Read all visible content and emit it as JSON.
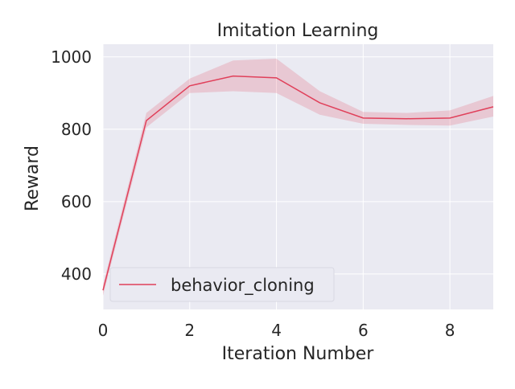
{
  "chart_data": {
    "type": "line",
    "title": "Imitation Learning",
    "xlabel": "Iteration Number",
    "ylabel": "Reward",
    "xlim": [
      0,
      9
    ],
    "ylim": [
      302,
      1035
    ],
    "xticks": [
      0,
      2,
      4,
      6,
      8
    ],
    "yticks": [
      400,
      600,
      800,
      1000
    ],
    "grid": true,
    "legend_position": "lower-left",
    "series": [
      {
        "name": "behavior_cloning",
        "color": "#e0405a",
        "x": [
          0,
          1,
          2,
          3,
          4,
          5,
          6,
          7,
          8,
          9
        ],
        "y": [
          355,
          824,
          920,
          947,
          942,
          873,
          831,
          829,
          831,
          862
        ],
        "lower": [
          340,
          805,
          900,
          905,
          900,
          840,
          815,
          812,
          810,
          835
        ],
        "upper": [
          370,
          845,
          940,
          990,
          995,
          905,
          848,
          845,
          852,
          892
        ]
      }
    ]
  }
}
